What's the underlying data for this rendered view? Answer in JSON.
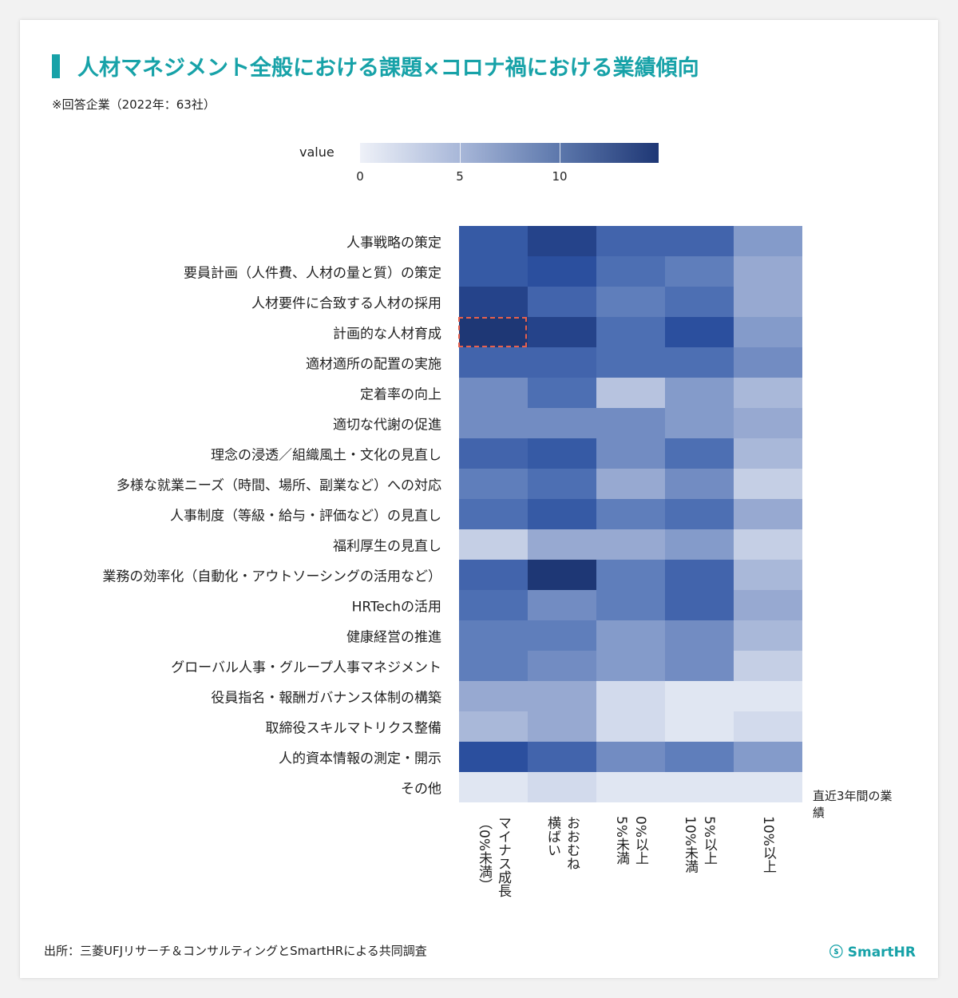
{
  "title": "人材マネジメント全般における課題×コロナ禍における業績傾向",
  "subtitle": "※回答企業（2022年：63社）",
  "source": "出所：三菱UFJリサーチ＆コンサルティングとSmartHRによる共同調査",
  "logo": "SmartHR",
  "colors": {
    "accent": "#17a2a8",
    "low": "#eef1f8",
    "high": "#1e3775",
    "highlight": "#e8604c"
  },
  "chart_data": {
    "type": "heatmap",
    "legend": {
      "title": "value",
      "ticks": [
        "0",
        "5",
        "10"
      ],
      "range": [
        0,
        15
      ]
    },
    "x_title": "直近3年間の業績",
    "x_labels": [
      "マイナス成長（0%未満）",
      "おおむね横ばい",
      "0%以上5%未満",
      "5%以上10%未満",
      "10%以上"
    ],
    "x_label_lines": [
      [
        "マイナス成長",
        "（0%未満）"
      ],
      [
        "おおむね",
        "横ばい"
      ],
      [
        "0%以上",
        "5%未満"
      ],
      [
        "5%以上",
        "10%未満"
      ],
      [
        "10%以上"
      ]
    ],
    "y_labels": [
      "人事戦略の策定",
      "要員計画（人件費、人材の量と質）の策定",
      "人材要件に合致する人材の採用",
      "計画的な人材育成",
      "適材適所の配置の実施",
      "定着率の向上",
      "適切な代謝の促進",
      "理念の浸透／組織風土・文化の見直し",
      "多様な就業ニーズ（時間、場所、副業など）への対応",
      "人事制度（等級・給与・評価など）の見直し",
      "福利厚生の見直し",
      "業務の効率化（自動化・アウトソーシングの活用など）",
      "HRTechの活用",
      "健康経営の推進",
      "グローバル人事・グループ人事マネジメント",
      "役員指名・報酬ガバナンス体制の構築",
      "取締役スキルマトリクス整備",
      "人的資本情報の測定・開示",
      "その他"
    ],
    "values": [
      [
        12,
        14,
        11,
        11,
        7
      ],
      [
        12,
        13,
        10,
        9,
        6
      ],
      [
        14,
        11,
        9,
        10,
        6
      ],
      [
        15,
        14,
        10,
        13,
        7
      ],
      [
        11,
        11,
        10,
        10,
        8
      ],
      [
        8,
        10,
        4,
        7,
        5
      ],
      [
        8,
        8,
        8,
        7,
        6
      ],
      [
        11,
        12,
        8,
        10,
        5
      ],
      [
        9,
        10,
        6,
        8,
        3
      ],
      [
        10,
        12,
        9,
        10,
        6
      ],
      [
        3,
        6,
        6,
        7,
        3
      ],
      [
        11,
        15,
        9,
        11,
        5
      ],
      [
        10,
        8,
        9,
        11,
        6
      ],
      [
        9,
        9,
        7,
        8,
        5
      ],
      [
        9,
        8,
        7,
        8,
        3
      ],
      [
        6,
        6,
        2,
        1,
        1
      ],
      [
        5,
        6,
        2,
        1,
        2
      ],
      [
        13,
        11,
        8,
        9,
        7
      ],
      [
        1,
        2,
        1,
        1,
        1
      ]
    ],
    "highlighted_cell": {
      "row": "計画的な人材育成",
      "column": "マイナス成長（0%未満）"
    }
  }
}
